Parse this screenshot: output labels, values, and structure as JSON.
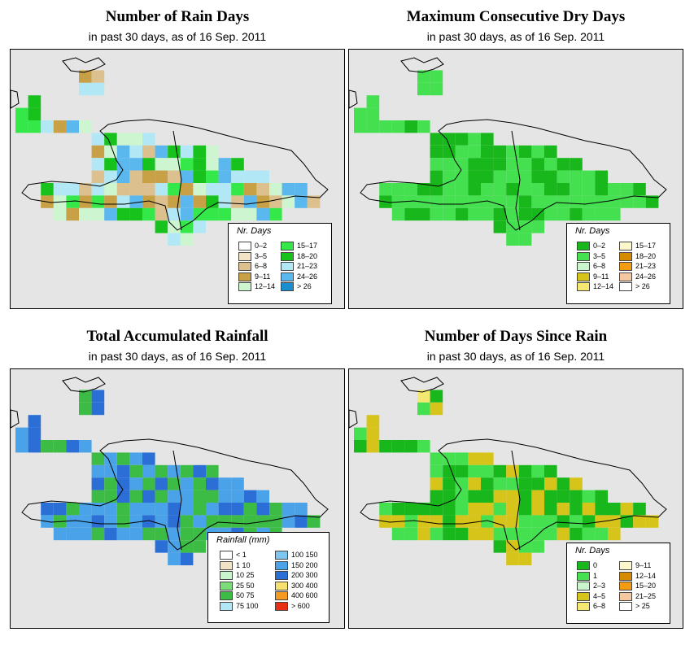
{
  "panels": [
    {
      "id": "rain-days",
      "title": "Number of Rain Days",
      "subtitle": "in past 30 days, as of  16 Sep. 2011",
      "legend_title": "Nr. Days",
      "legend": [
        {
          "label": "0–2",
          "color": "#ffffff"
        },
        {
          "label": "3–5",
          "color": "#f3e3c6"
        },
        {
          "label": "6–8",
          "color": "#dcc08e"
        },
        {
          "label": "9–11",
          "color": "#c8a045"
        },
        {
          "label": "12–14",
          "color": "#ccf5d0"
        },
        {
          "label": "15–17",
          "color": "#35e84a"
        },
        {
          "label": "18–20",
          "color": "#18c21c"
        },
        {
          "label": "21–23",
          "color": "#b2e8f5"
        },
        {
          "label": "24–26",
          "color": "#5ab8ee"
        },
        {
          "label": "> 26",
          "color": "#1a8fcf"
        }
      ]
    },
    {
      "id": "max-dry-days",
      "title": "Maximum Consecutive Dry Days",
      "subtitle": "in past 30 days, as of  16 Sep. 2011",
      "legend_title": "Nr. Days",
      "legend": [
        {
          "label": "0–2",
          "color": "#18b81c"
        },
        {
          "label": "3–5",
          "color": "#45e050"
        },
        {
          "label": "6–8",
          "color": "#c8f5cc"
        },
        {
          "label": "9–11",
          "color": "#d6c41a"
        },
        {
          "label": "12–14",
          "color": "#f5e870"
        },
        {
          "label": "15–17",
          "color": "#fdf8cc"
        },
        {
          "label": "18–20",
          "color": "#d68a00"
        },
        {
          "label": "21–23",
          "color": "#f39c12"
        },
        {
          "label": "24–26",
          "color": "#f5c8a0"
        },
        {
          "label": "> 26",
          "color": "#ffffff"
        }
      ]
    },
    {
      "id": "total-rainfall",
      "title": "Total Accumulated Rainfall",
      "subtitle": "in past 30 days, as of  16 Sep. 2011",
      "legend_title": "Rainfall (mm)",
      "legend": [
        {
          "label": "< 1",
          "color": "#ffffff"
        },
        {
          "label": "1   10",
          "color": "#f3e3c6"
        },
        {
          "label": "10   25",
          "color": "#c8f5cc"
        },
        {
          "label": "25   50",
          "color": "#7ddc7a"
        },
        {
          "label": "50   75",
          "color": "#3cbc44"
        },
        {
          "label": "75  100",
          "color": "#b2e8f5"
        },
        {
          "label": "100  150",
          "color": "#7ec6f0"
        },
        {
          "label": "150  200",
          "color": "#4aa3e8"
        },
        {
          "label": "200  300",
          "color": "#2b6fd6"
        },
        {
          "label": "300  400",
          "color": "#f5e070"
        },
        {
          "label": "400  600",
          "color": "#f59a20"
        },
        {
          "label": "> 600",
          "color": "#e83010"
        }
      ]
    },
    {
      "id": "days-since-rain",
      "title": "Number of Days Since Rain",
      "subtitle": "in past 30 days, as of  16 Sep. 2011",
      "legend_title": "Nr. Days",
      "legend": [
        {
          "label": "0",
          "color": "#18b81c"
        },
        {
          "label": "1",
          "color": "#45e050"
        },
        {
          "label": "2–3",
          "color": "#c8f5cc"
        },
        {
          "label": "4–5",
          "color": "#d6c41a"
        },
        {
          "label": "6–8",
          "color": "#f5e870"
        },
        {
          "label": "9–11",
          "color": "#fdf8cc"
        },
        {
          "label": "12–14",
          "color": "#d68a00"
        },
        {
          "label": "15–20",
          "color": "#f39c12"
        },
        {
          "label": "21–25",
          "color": "#f5c8a0"
        },
        {
          "label": "> 25",
          "color": "#ffffff"
        }
      ]
    }
  ],
  "background_color": "#e5e5e5"
}
